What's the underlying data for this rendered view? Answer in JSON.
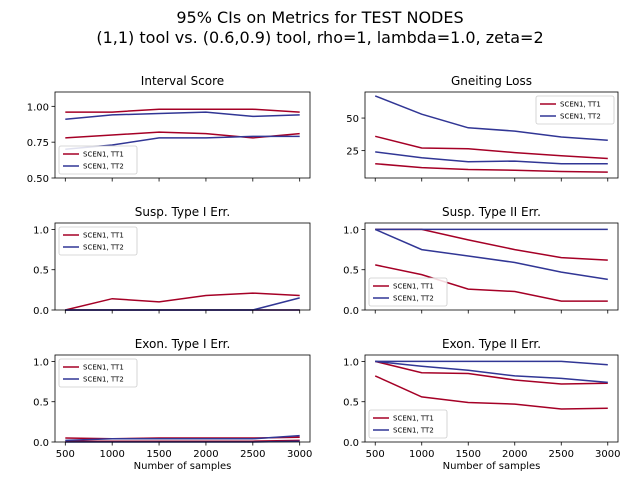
{
  "figure": {
    "title_line1": "95% CIs on Metrics for TEST NODES",
    "title_line2": "(1,1) tool vs. (0.6,0.9) tool, rho=1, lambda=1.0, zeta=2"
  },
  "colors": {
    "tt1": "#a50026",
    "tt2": "#313695"
  },
  "chart_data": [
    {
      "type": "line",
      "title": "Interval Score",
      "x": [
        500,
        1000,
        1500,
        2000,
        2500,
        3000
      ],
      "xticks": [
        500,
        1000,
        1500,
        2000,
        2500,
        3000
      ],
      "xtick_labels_shown": false,
      "xlabel": "",
      "ylim": [
        0.5,
        1.1
      ],
      "yticks": [
        0.5,
        0.75,
        1.0
      ],
      "ytick_labels": [
        "0.50",
        "0.75",
        "1.00"
      ],
      "legend": {
        "placement": "lower-left",
        "entries": [
          "SCEN1, TT1",
          "SCEN1, TT2"
        ]
      },
      "series": [
        {
          "name": "SCEN1, TT1",
          "color": "tt1",
          "values": [
            0.78,
            0.8,
            0.82,
            0.81,
            0.78,
            0.81
          ]
        },
        {
          "name": "SCEN1, TT1",
          "color": "tt1",
          "values": [
            0.96,
            0.96,
            0.98,
            0.98,
            0.98,
            0.96
          ]
        },
        {
          "name": "SCEN1, TT2",
          "color": "tt2",
          "values": [
            0.7,
            0.73,
            0.78,
            0.78,
            0.79,
            0.79
          ]
        },
        {
          "name": "SCEN1, TT2",
          "color": "tt2",
          "values": [
            0.91,
            0.94,
            0.95,
            0.96,
            0.93,
            0.94
          ]
        }
      ]
    },
    {
      "type": "line",
      "title": "Gneiting Loss",
      "x": [
        500,
        1000,
        1500,
        2000,
        2500,
        3000
      ],
      "xticks": [
        500,
        1000,
        1500,
        2000,
        2500,
        3000
      ],
      "xtick_labels_shown": false,
      "xlabel": "",
      "ylim": [
        4,
        70
      ],
      "yticks": [
        25,
        50
      ],
      "ytick_labels": [
        "25",
        "50"
      ],
      "legend": {
        "placement": "upper-right",
        "entries": [
          "SCEN1, TT1",
          "SCEN1, TT2"
        ]
      },
      "series": [
        {
          "name": "SCEN1, TT1",
          "color": "tt1",
          "values": [
            15,
            12,
            10.5,
            10,
            9,
            8.5
          ]
        },
        {
          "name": "SCEN1, TT1",
          "color": "tt1",
          "values": [
            36,
            27,
            26.5,
            23.5,
            21,
            19
          ]
        },
        {
          "name": "SCEN1, TT2",
          "color": "tt2",
          "values": [
            24,
            19.5,
            16.5,
            17,
            15,
            15
          ]
        },
        {
          "name": "SCEN1, TT2",
          "color": "tt2",
          "values": [
            67,
            53,
            42.5,
            40,
            35.5,
            33
          ]
        }
      ]
    },
    {
      "type": "line",
      "title": "Susp. Type I Err.",
      "x": [
        500,
        1000,
        1500,
        2000,
        2500,
        3000
      ],
      "xticks": [
        500,
        1000,
        1500,
        2000,
        2500,
        3000
      ],
      "xtick_labels_shown": false,
      "xlabel": "",
      "ylim": [
        0,
        1.08
      ],
      "yticks": [
        0,
        0.5,
        1.0
      ],
      "ytick_labels": [
        "0.0",
        "0.5",
        "1.0"
      ],
      "legend": {
        "placement": "upper-left",
        "entries": [
          "SCEN1, TT1",
          "SCEN1, TT2"
        ]
      },
      "series": [
        {
          "name": "SCEN1, TT1",
          "color": "tt1",
          "values": [
            0,
            0.14,
            0.1,
            0.18,
            0.21,
            0.18
          ]
        },
        {
          "name": "SCEN1, TT1",
          "color": "tt1",
          "values": [
            0,
            0,
            0,
            0,
            0,
            0
          ]
        },
        {
          "name": "SCEN1, TT2",
          "color": "tt2",
          "values": [
            0,
            0,
            0,
            0,
            0,
            0.15
          ]
        },
        {
          "name": "SCEN1, TT2",
          "color": "tt2",
          "values": [
            0,
            0,
            0,
            0,
            0,
            0
          ]
        }
      ]
    },
    {
      "type": "line",
      "title": "Susp. Type II Err.",
      "x": [
        500,
        1000,
        1500,
        2000,
        2500,
        3000
      ],
      "xticks": [
        500,
        1000,
        1500,
        2000,
        2500,
        3000
      ],
      "xtick_labels_shown": false,
      "xlabel": "",
      "ylim": [
        0,
        1.08
      ],
      "yticks": [
        0,
        0.5,
        1.0
      ],
      "ytick_labels": [
        "0.0",
        "0.5",
        "1.0"
      ],
      "legend": {
        "placement": "lower-left",
        "entries": [
          "SCEN1, TT1",
          "SCEN1, TT2"
        ]
      },
      "series": [
        {
          "name": "SCEN1, TT1",
          "color": "tt1",
          "values": [
            0.56,
            0.44,
            0.26,
            0.23,
            0.11,
            0.11
          ]
        },
        {
          "name": "SCEN1, TT1",
          "color": "tt1",
          "values": [
            1.0,
            1.0,
            0.87,
            0.75,
            0.65,
            0.62
          ]
        },
        {
          "name": "SCEN1, TT2",
          "color": "tt2",
          "values": [
            1.0,
            0.75,
            0.67,
            0.59,
            0.47,
            0.38
          ]
        },
        {
          "name": "SCEN1, TT2",
          "color": "tt2",
          "values": [
            1.0,
            1.0,
            1.0,
            1.0,
            1.0,
            1.0
          ]
        }
      ]
    },
    {
      "type": "line",
      "title": "Exon. Type I Err.",
      "x": [
        500,
        1000,
        1500,
        2000,
        2500,
        3000
      ],
      "xticks": [
        500,
        1000,
        1500,
        2000,
        2500,
        3000
      ],
      "xtick_labels_shown": true,
      "xtick_labels": [
        "500",
        "1000",
        "1500",
        "2000",
        "2500",
        "3000"
      ],
      "xlabel": "Number of samples",
      "ylim": [
        0,
        1.08
      ],
      "yticks": [
        0,
        0.5,
        1.0
      ],
      "ytick_labels": [
        "0.0",
        "0.5",
        "1.0"
      ],
      "legend": {
        "placement": "upper-left",
        "entries": [
          "SCEN1, TT1",
          "SCEN1, TT2"
        ]
      },
      "series": [
        {
          "name": "SCEN1, TT1",
          "color": "tt1",
          "values": [
            0.05,
            0.04,
            0.05,
            0.05,
            0.05,
            0.06
          ]
        },
        {
          "name": "SCEN1, TT1",
          "color": "tt1",
          "values": [
            0.01,
            0.01,
            0.01,
            0.01,
            0.01,
            0.02
          ]
        },
        {
          "name": "SCEN1, TT2",
          "color": "tt2",
          "values": [
            0.02,
            0.04,
            0.04,
            0.04,
            0.04,
            0.08
          ]
        },
        {
          "name": "SCEN1, TT2",
          "color": "tt2",
          "values": [
            0.0,
            0.0,
            0.0,
            0.0,
            0.0,
            0.01
          ]
        }
      ]
    },
    {
      "type": "line",
      "title": "Exon. Type II Err.",
      "x": [
        500,
        1000,
        1500,
        2000,
        2500,
        3000
      ],
      "xticks": [
        500,
        1000,
        1500,
        2000,
        2500,
        3000
      ],
      "xtick_labels_shown": true,
      "xtick_labels": [
        "500",
        "1000",
        "1500",
        "2000",
        "2500",
        "3000"
      ],
      "xlabel": "Number of samples",
      "ylim": [
        0,
        1.08
      ],
      "yticks": [
        0,
        0.5,
        1.0
      ],
      "ytick_labels": [
        "0.0",
        "0.5",
        "1.0"
      ],
      "legend": {
        "placement": "lower-left",
        "entries": [
          "SCEN1, TT1",
          "SCEN1, TT2"
        ]
      },
      "series": [
        {
          "name": "SCEN1, TT1",
          "color": "tt1",
          "values": [
            0.82,
            0.56,
            0.49,
            0.47,
            0.41,
            0.42
          ]
        },
        {
          "name": "SCEN1, TT1",
          "color": "tt1",
          "values": [
            1.0,
            0.86,
            0.85,
            0.77,
            0.72,
            0.73
          ]
        },
        {
          "name": "SCEN1, TT2",
          "color": "tt2",
          "values": [
            1.0,
            0.94,
            0.89,
            0.82,
            0.79,
            0.74
          ]
        },
        {
          "name": "SCEN1, TT2",
          "color": "tt2",
          "values": [
            1.0,
            1.0,
            1.0,
            1.0,
            1.0,
            0.96
          ]
        }
      ]
    }
  ]
}
